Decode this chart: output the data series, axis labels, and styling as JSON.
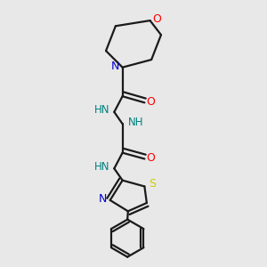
{
  "background_color": "#e8e8e8",
  "bond_color": "#1a1a1a",
  "atom_colors": {
    "O": "#ff0000",
    "N": "#0000cc",
    "S": "#cccc00",
    "C": "#1a1a1a",
    "HN": "#008080"
  },
  "figsize": [
    3.0,
    3.0
  ],
  "dpi": 100,
  "lw": 1.6
}
